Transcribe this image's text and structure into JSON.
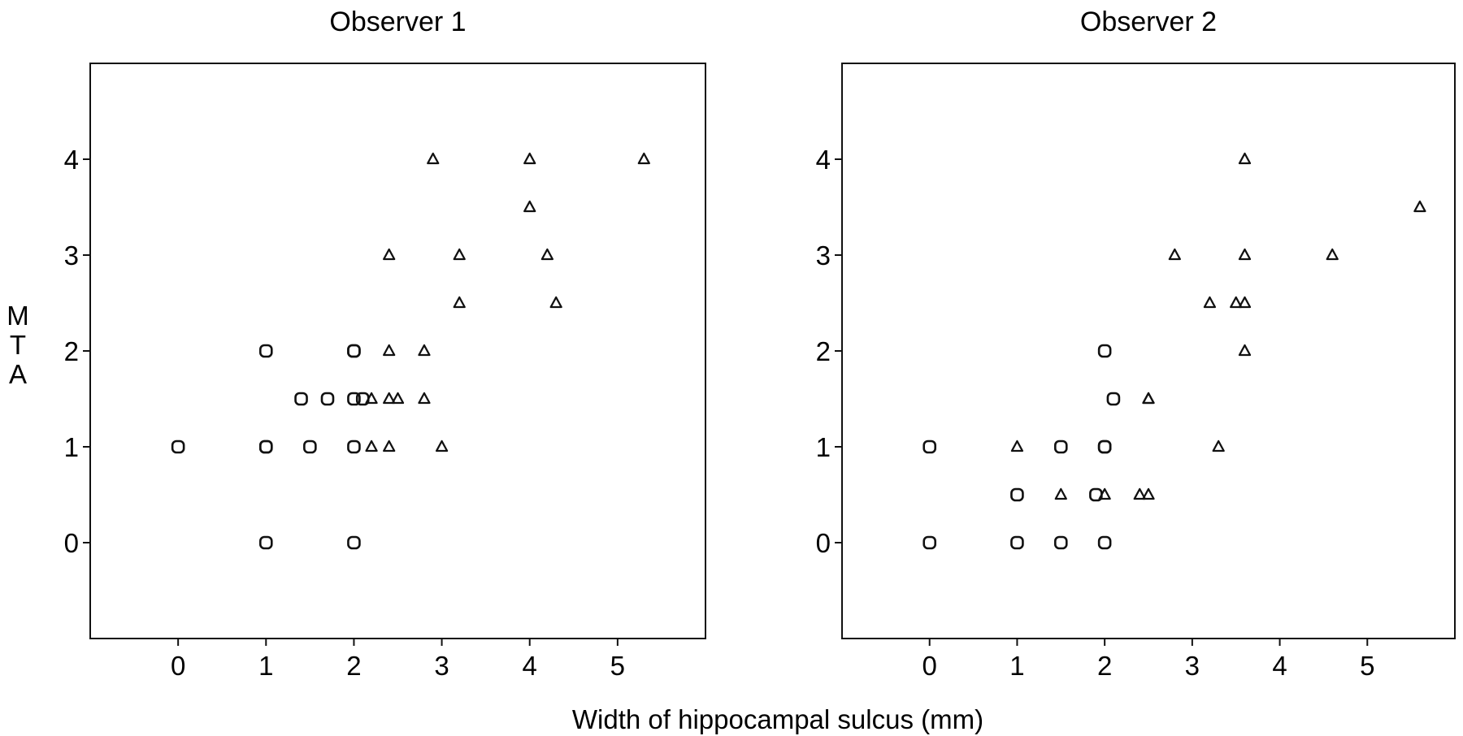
{
  "figure": {
    "xlabel": "Width of hippocampal sulcus (mm)",
    "ylabel": "MTA",
    "ylabel_letters": [
      "M",
      "T",
      "A"
    ]
  },
  "chart_data": [
    {
      "type": "scatter",
      "title": "Observer 1",
      "xlabel": "Width of hippocampal sulcus (mm)",
      "ylabel": "MTA",
      "xlim": [
        -1,
        6
      ],
      "ylim": [
        -1,
        5
      ],
      "xticks": [
        0,
        1,
        2,
        3,
        4,
        5
      ],
      "yticks": [
        0,
        1,
        2,
        3,
        4
      ],
      "grid": false,
      "series": [
        {
          "marker": "circle",
          "points": [
            {
              "x": 0,
              "y": 1
            },
            {
              "x": 1,
              "y": 1
            },
            {
              "x": 1,
              "y": 1
            },
            {
              "x": 1,
              "y": 2
            },
            {
              "x": 1,
              "y": 0
            },
            {
              "x": 1.5,
              "y": 1
            },
            {
              "x": 1.4,
              "y": 1.5
            },
            {
              "x": 1.7,
              "y": 1.5
            },
            {
              "x": 2,
              "y": 2
            },
            {
              "x": 2,
              "y": 2
            },
            {
              "x": 2,
              "y": 1.5
            },
            {
              "x": 2.1,
              "y": 1.5
            },
            {
              "x": 2,
              "y": 1
            },
            {
              "x": 2,
              "y": 0
            }
          ]
        },
        {
          "marker": "triangle",
          "points": [
            {
              "x": 2.2,
              "y": 1.5
            },
            {
              "x": 2.4,
              "y": 1.5
            },
            {
              "x": 2.5,
              "y": 1.5
            },
            {
              "x": 2.8,
              "y": 1.5
            },
            {
              "x": 2.2,
              "y": 1
            },
            {
              "x": 2.4,
              "y": 1
            },
            {
              "x": 3,
              "y": 1
            },
            {
              "x": 2.4,
              "y": 2
            },
            {
              "x": 2.8,
              "y": 2
            },
            {
              "x": 2.4,
              "y": 3
            },
            {
              "x": 3.2,
              "y": 3
            },
            {
              "x": 4.2,
              "y": 3
            },
            {
              "x": 3.2,
              "y": 2.5
            },
            {
              "x": 4.3,
              "y": 2.5
            },
            {
              "x": 4,
              "y": 3.5
            },
            {
              "x": 2.9,
              "y": 4
            },
            {
              "x": 4,
              "y": 4
            },
            {
              "x": 5.3,
              "y": 4
            }
          ]
        }
      ]
    },
    {
      "type": "scatter",
      "title": "Observer 2",
      "xlabel": "Width of hippocampal sulcus (mm)",
      "ylabel": "MTA",
      "xlim": [
        -1,
        6
      ],
      "ylim": [
        -1,
        5
      ],
      "xticks": [
        0,
        1,
        2,
        3,
        4,
        5
      ],
      "yticks": [
        0,
        1,
        2,
        3,
        4
      ],
      "grid": false,
      "series": [
        {
          "marker": "circle",
          "points": [
            {
              "x": 0,
              "y": 1
            },
            {
              "x": 0,
              "y": 0
            },
            {
              "x": 1,
              "y": 0.5
            },
            {
              "x": 1,
              "y": 0
            },
            {
              "x": 1.5,
              "y": 1
            },
            {
              "x": 1.5,
              "y": 0
            },
            {
              "x": 1.9,
              "y": 0.5
            },
            {
              "x": 2,
              "y": 2
            },
            {
              "x": 2.1,
              "y": 1.5
            },
            {
              "x": 2,
              "y": 1
            },
            {
              "x": 2,
              "y": 1
            },
            {
              "x": 2,
              "y": 0
            }
          ]
        },
        {
          "marker": "triangle",
          "points": [
            {
              "x": 1,
              "y": 1
            },
            {
              "x": 1.5,
              "y": 0.5
            },
            {
              "x": 2,
              "y": 0.5
            },
            {
              "x": 2.4,
              "y": 0.5
            },
            {
              "x": 2.5,
              "y": 0.5
            },
            {
              "x": 2.5,
              "y": 1.5
            },
            {
              "x": 2.5,
              "y": 1.5
            },
            {
              "x": 3.3,
              "y": 1
            },
            {
              "x": 3.6,
              "y": 2
            },
            {
              "x": 3.2,
              "y": 2.5
            },
            {
              "x": 3.5,
              "y": 2.5
            },
            {
              "x": 3.6,
              "y": 2.5
            },
            {
              "x": 2.8,
              "y": 3
            },
            {
              "x": 3.6,
              "y": 3
            },
            {
              "x": 4.6,
              "y": 3
            },
            {
              "x": 5.6,
              "y": 3.5
            },
            {
              "x": 3.6,
              "y": 4
            }
          ]
        }
      ]
    }
  ]
}
